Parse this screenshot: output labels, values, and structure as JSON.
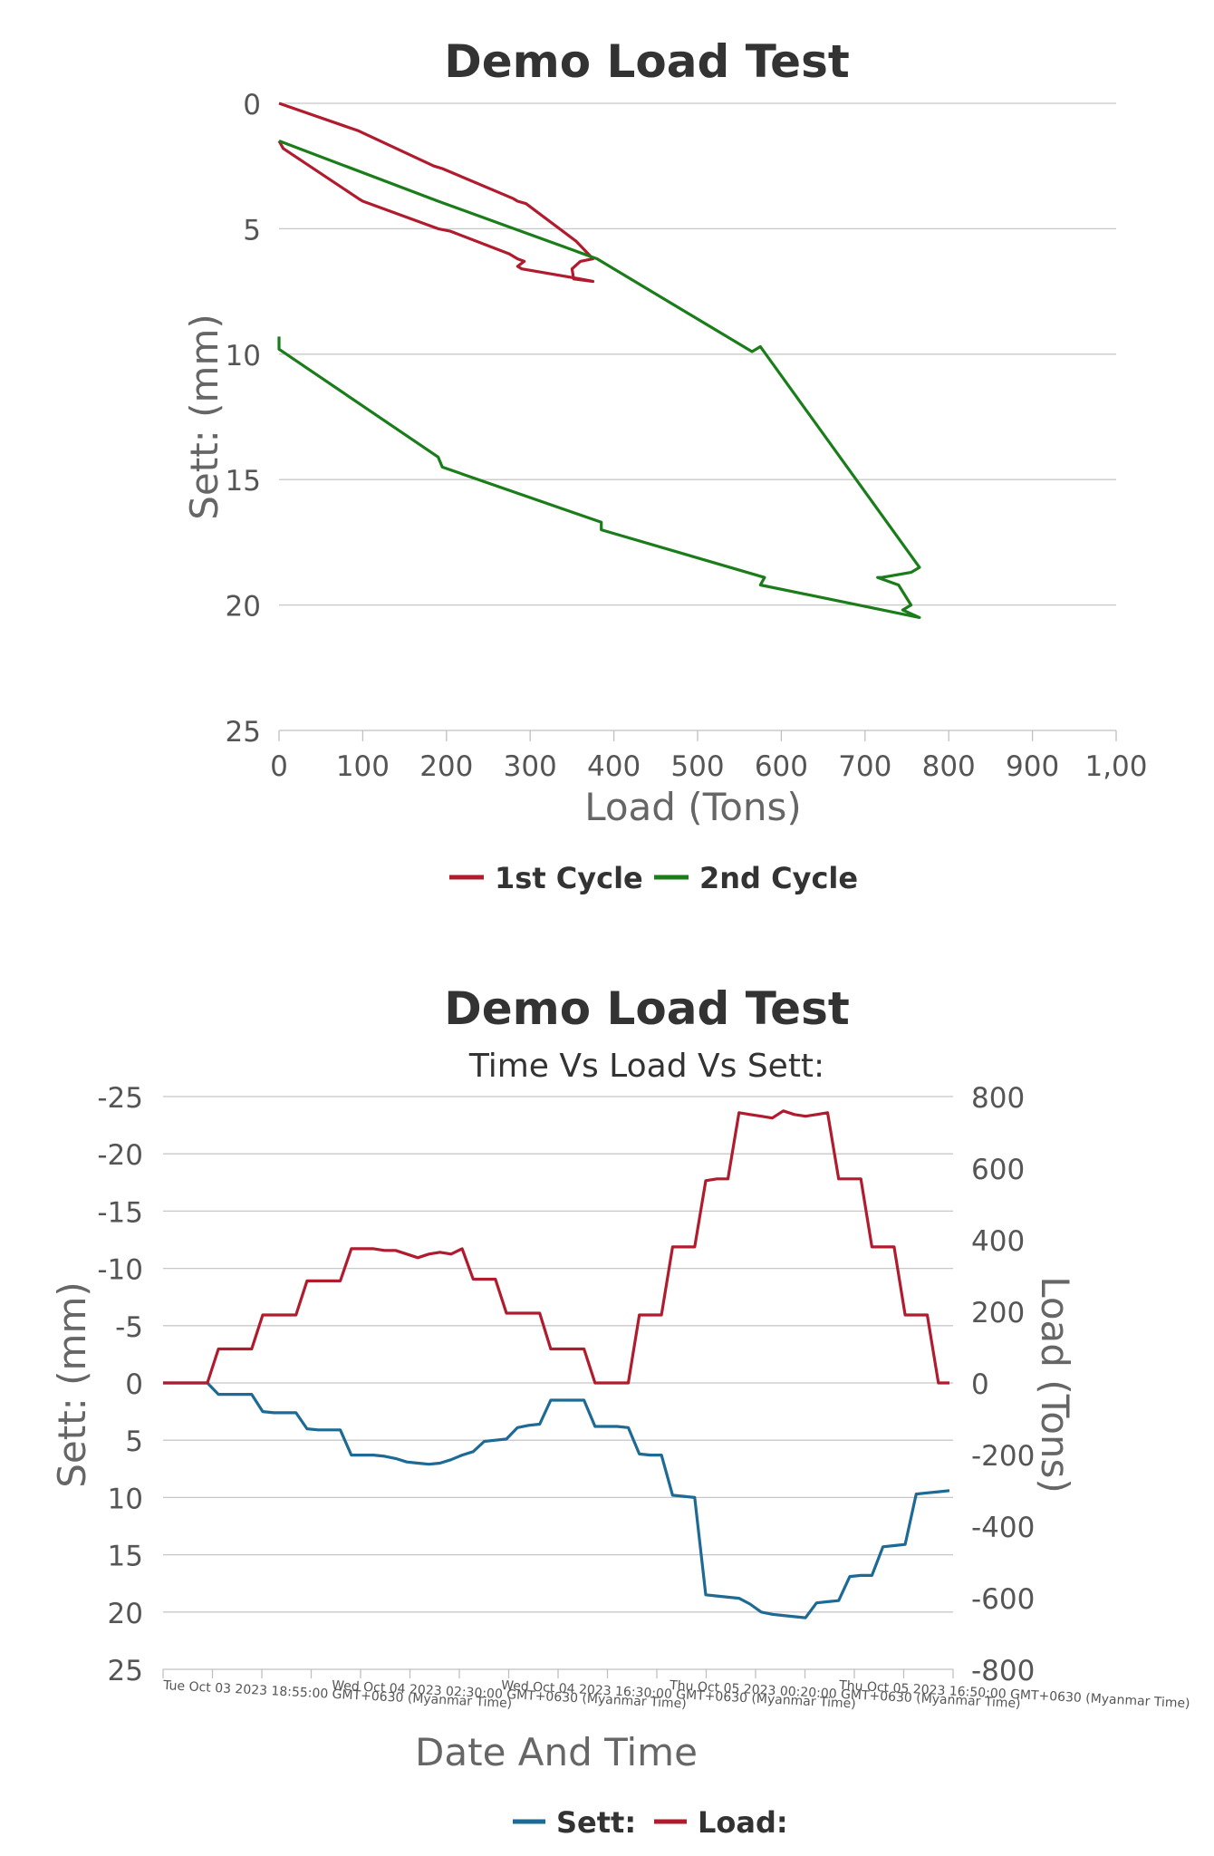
{
  "chart_data": [
    {
      "type": "line",
      "title": "Demo Load Test",
      "xlabel": "Load (Tons)",
      "ylabel": "Sett: (mm)",
      "xlim": [
        0,
        1000
      ],
      "ylim": [
        0,
        25
      ],
      "y_reversed": true,
      "x_ticks": [
        "0",
        "100",
        "200",
        "300",
        "400",
        "500",
        "600",
        "700",
        "800",
        "900",
        "1,00"
      ],
      "y_ticks": [
        "0",
        "5",
        "10",
        "15",
        "20",
        "25"
      ],
      "grid": "horizontal",
      "legend_position": "bottom-center",
      "series": [
        {
          "name": "1st Cycle",
          "color": "#b01c2e",
          "points": [
            [
              0,
              0
            ],
            [
              95,
              1.1
            ],
            [
              185,
              2.5
            ],
            [
              195,
              2.6
            ],
            [
              280,
              3.8
            ],
            [
              285,
              3.9
            ],
            [
              295,
              4.0
            ],
            [
              355,
              5.5
            ],
            [
              375,
              6.2
            ],
            [
              360,
              6.3
            ],
            [
              350,
              6.6
            ],
            [
              352,
              7.0
            ],
            [
              375,
              7.1
            ],
            [
              360,
              7.0
            ],
            [
              290,
              6.6
            ],
            [
              285,
              6.5
            ],
            [
              293,
              6.3
            ],
            [
              285,
              6.2
            ],
            [
              275,
              6.0
            ],
            [
              205,
              5.1
            ],
            [
              190,
              5.0
            ],
            [
              100,
              3.9
            ],
            [
              95,
              3.8
            ],
            [
              5,
              1.8
            ],
            [
              0,
              1.5
            ]
          ]
        },
        {
          "name": "2nd Cycle",
          "color": "#1a7d1a",
          "points": [
            [
              0,
              1.5
            ],
            [
              190,
              3.9
            ],
            [
              380,
              6.2
            ],
            [
              385,
              6.3
            ],
            [
              565,
              9.9
            ],
            [
              575,
              9.7
            ],
            [
              765,
              18.5
            ],
            [
              755,
              18.7
            ],
            [
              720,
              18.9
            ],
            [
              715,
              18.9
            ],
            [
              740,
              19.2
            ],
            [
              755,
              20.0
            ],
            [
              745,
              20.2
            ],
            [
              765,
              20.5
            ],
            [
              575,
              19.2
            ],
            [
              580,
              18.9
            ],
            [
              385,
              17.0
            ],
            [
              385,
              16.7
            ],
            [
              195,
              14.5
            ],
            [
              190,
              14.1
            ],
            [
              0,
              9.8
            ],
            [
              0,
              9.3
            ]
          ]
        }
      ]
    },
    {
      "type": "line",
      "title": "Demo Load Test",
      "subtitle": "Time Vs Load Vs Sett:",
      "xlabel": "Date And Time",
      "ylabel": "Sett: (mm)",
      "y2label": "Load (Tons)",
      "ylim": [
        -25,
        25
      ],
      "y_reversed": true,
      "y2lim": [
        -800,
        800
      ],
      "y_ticks": [
        "-25",
        "-20",
        "-15",
        "-10",
        "-5",
        "0",
        "5",
        "10",
        "15",
        "20",
        "25"
      ],
      "y2_ticks": [
        "800",
        "600",
        "400",
        "200",
        "0",
        "-200",
        "-400",
        "-600",
        "-800"
      ],
      "x_ticks": [
        "Tue Oct 03 2023 18:55:00 GMT+0630 (Myanmar Time)",
        "Wed Oct 04 2023 02:30:00 GMT+0630 (Myanmar Time)",
        "Wed Oct 04 2023 16:30:00 GMT+0630 (Myanmar Time)",
        "Thu Oct 05 2023 00:20:00 GMT+0630 (Myanmar Time)",
        "Thu Oct 05 2023 16:50:00 GMT+0630 (Myanmar Time)"
      ],
      "grid": "horizontal",
      "legend_position": "bottom-center",
      "series": [
        {
          "name": "Sett:",
          "axis": "left",
          "color": "#1d6a94",
          "values": [
            0,
            0,
            0,
            0,
            0,
            1.0,
            1.0,
            1.0,
            1.0,
            2.5,
            2.6,
            2.6,
            2.6,
            4.0,
            4.1,
            4.1,
            4.1,
            6.3,
            6.3,
            6.3,
            6.4,
            6.6,
            6.9,
            7.0,
            7.1,
            7.0,
            6.7,
            6.3,
            6.0,
            5.1,
            5.0,
            4.9,
            3.9,
            3.7,
            3.6,
            1.5,
            1.5,
            1.5,
            1.5,
            3.8,
            3.8,
            3.8,
            3.9,
            6.2,
            6.3,
            6.3,
            9.8,
            9.9,
            10.0,
            18.5,
            18.6,
            18.7,
            18.8,
            19.3,
            20.0,
            20.2,
            20.3,
            20.4,
            20.5,
            19.2,
            19.1,
            19.0,
            16.9,
            16.8,
            16.8,
            14.3,
            14.2,
            14.1,
            9.7,
            9.6,
            9.5,
            9.4
          ]
        },
        {
          "name": "Load:",
          "axis": "right",
          "color": "#b01c2e",
          "values": [
            0,
            0,
            0,
            0,
            0,
            95,
            95,
            95,
            95,
            190,
            190,
            190,
            190,
            285,
            285,
            285,
            285,
            375,
            375,
            375,
            370,
            370,
            360,
            350,
            360,
            365,
            360,
            375,
            290,
            290,
            290,
            195,
            195,
            195,
            195,
            95,
            95,
            95,
            95,
            0,
            0,
            0,
            0,
            190,
            190,
            190,
            380,
            380,
            380,
            565,
            570,
            570,
            755,
            750,
            745,
            740,
            760,
            750,
            745,
            750,
            755,
            570,
            570,
            570,
            380,
            380,
            380,
            190,
            190,
            190,
            0,
            0
          ]
        }
      ]
    }
  ]
}
